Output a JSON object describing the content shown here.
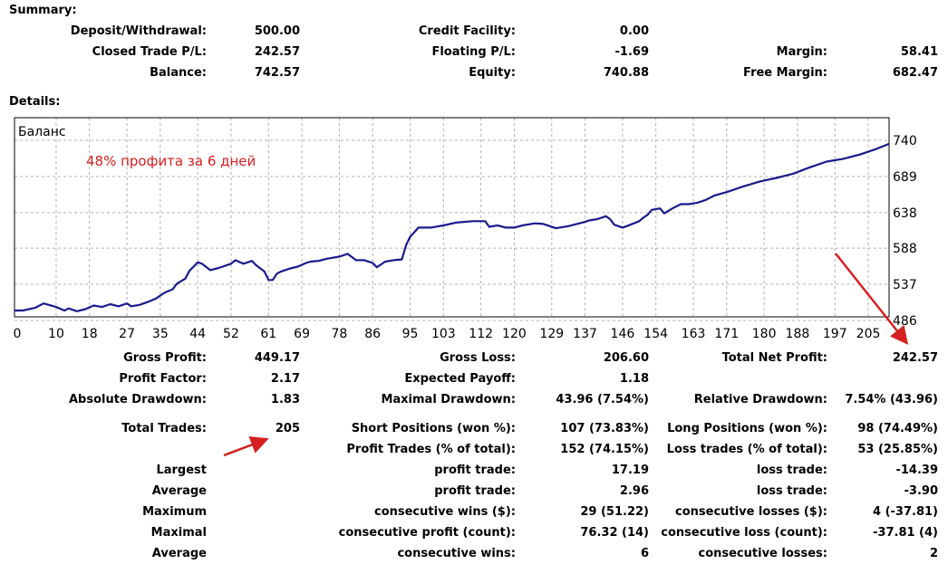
{
  "summary": {
    "title": "Summary:",
    "rows": [
      [
        "Deposit/Withdrawal:",
        "500.00",
        "Credit Facility:",
        "0.00",
        "",
        ""
      ],
      [
        "Closed Trade P/L:",
        "242.57",
        "Floating P/L:",
        "-1.69",
        "Margin:",
        "58.41"
      ],
      [
        "Balance:",
        "742.57",
        "Equity:",
        "740.88",
        "Free Margin:",
        "682.47"
      ]
    ]
  },
  "details": {
    "title": "Details:",
    "rows": [
      [
        "Gross Profit:",
        "449.17",
        "Gross Loss:",
        "206.60",
        "Total Net Profit:",
        "242.57"
      ],
      [
        "Profit Factor:",
        "2.17",
        "Expected Payoff:",
        "1.18",
        "",
        ""
      ],
      [
        "Absolute Drawdown:",
        "1.83",
        "Maximal Drawdown:",
        "43.96 (7.54%)",
        "Relative Drawdown:",
        "7.54% (43.96)"
      ],
      [
        "Total Trades:",
        "205",
        "Short Positions (won %):",
        "107 (73.83%)",
        "Long Positions (won %):",
        "98 (74.49%)"
      ],
      [
        "",
        "",
        "Profit Trades (% of total):",
        "152 (74.15%)",
        "Loss trades (% of total):",
        "53 (25.85%)"
      ],
      [
        "Largest",
        "",
        "profit trade:",
        "17.19",
        "loss trade:",
        "-14.39"
      ],
      [
        "Average",
        "",
        "profit trade:",
        "2.96",
        "loss trade:",
        "-3.90"
      ],
      [
        "Maximum",
        "",
        "consecutive wins ($):",
        "29 (51.22)",
        "consecutive losses ($):",
        "4 (-37.81)"
      ],
      [
        "Maximal",
        "",
        "consecutive profit (count):",
        "76.32 (14)",
        "consecutive loss (count):",
        "-37.81 (4)"
      ],
      [
        "Average",
        "",
        "consecutive wins:",
        "6",
        "consecutive losses:",
        "2"
      ]
    ]
  },
  "colors": {
    "line": "#1a1a8c",
    "annotation": "#d42020",
    "grid": "#b0b0b0"
  },
  "chart_data": {
    "type": "line",
    "title": "Баланс",
    "annotation": "48% профита за 6 дней",
    "xlabel": "",
    "ylabel": "",
    "x_ticks": [
      "0",
      "10",
      "18",
      "27",
      "35",
      "44",
      "52",
      "61",
      "69",
      "78",
      "86",
      "95",
      "103",
      "112",
      "120",
      "129",
      "137",
      "146",
      "154",
      "163",
      "171",
      "180",
      "188",
      "197",
      "205"
    ],
    "y_ticks": [
      "740",
      "689",
      "638",
      "588",
      "537",
      "486"
    ],
    "ylim": [
      486,
      740
    ],
    "xlim": [
      0,
      210
    ],
    "grid": true,
    "series": [
      {
        "x": [
          0,
          2,
          5,
          7,
          10,
          12,
          13,
          15,
          17,
          19,
          21,
          23,
          25,
          27,
          28,
          30,
          32,
          34,
          36,
          38,
          39,
          41,
          42,
          43,
          44,
          45,
          47,
          49,
          50,
          52,
          53,
          55,
          57,
          58,
          60,
          61,
          62,
          63,
          64,
          66,
          68,
          70,
          71,
          73,
          75,
          78,
          80,
          82,
          84,
          86,
          87,
          88,
          89,
          91,
          93,
          94,
          95,
          97,
          100,
          103,
          106,
          110,
          113,
          114,
          116,
          118,
          120,
          122,
          125,
          127,
          130,
          133,
          135,
          137,
          138,
          140,
          142,
          143,
          144,
          146,
          147,
          150,
          151,
          152,
          153,
          155,
          156,
          158,
          160,
          162,
          164,
          166,
          168,
          171,
          175,
          179,
          183,
          187,
          191,
          195,
          199,
          203,
          207,
          210
        ],
        "y": [
          500,
          500,
          504,
          510,
          505,
          500,
          503,
          499,
          502,
          507,
          505,
          509,
          506,
          510,
          506,
          508,
          512,
          517,
          525,
          530,
          538,
          545,
          556,
          562,
          568,
          566,
          557,
          560,
          562,
          566,
          571,
          566,
          570,
          564,
          555,
          543,
          543,
          552,
          555,
          559,
          562,
          567,
          569,
          570,
          573,
          576,
          580,
          571,
          571,
          567,
          561,
          565,
          569,
          571,
          572,
          592,
          604,
          617,
          617,
          620,
          624,
          626,
          626,
          618,
          620,
          617,
          617,
          620,
          623,
          622,
          616,
          619,
          622,
          625,
          627,
          629,
          633,
          629,
          621,
          617,
          619,
          626,
          631,
          635,
          642,
          644,
          637,
          644,
          650,
          650,
          652,
          656,
          662,
          667,
          675,
          682,
          687,
          693,
          702,
          710,
          714,
          720,
          728,
          735
        ]
      }
    ]
  }
}
